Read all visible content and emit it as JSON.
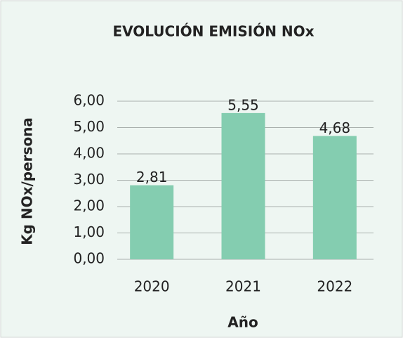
{
  "chart_data": {
    "type": "bar",
    "title": "EVOLUCIÓN EMISIÓN NOx",
    "y_label": "Kg NOx/persona",
    "x_label": "Año",
    "categories": [
      "2020",
      "2021",
      "2022"
    ],
    "values": [
      2.81,
      5.55,
      4.68
    ],
    "value_labels": [
      "2,81",
      "5,55",
      "4,68"
    ],
    "color": "#84cdb0",
    "ylim": [
      0,
      6
    ],
    "yticks": [
      {
        "value": 0,
        "label": "0,00"
      },
      {
        "value": 1,
        "label": "1,00"
      },
      {
        "value": 2,
        "label": "2,00"
      },
      {
        "value": 3,
        "label": "3,00"
      },
      {
        "value": 4,
        "label": "4,00"
      },
      {
        "value": 5,
        "label": "5,00"
      },
      {
        "value": 6,
        "label": "6,00"
      }
    ],
    "grid": true
  }
}
